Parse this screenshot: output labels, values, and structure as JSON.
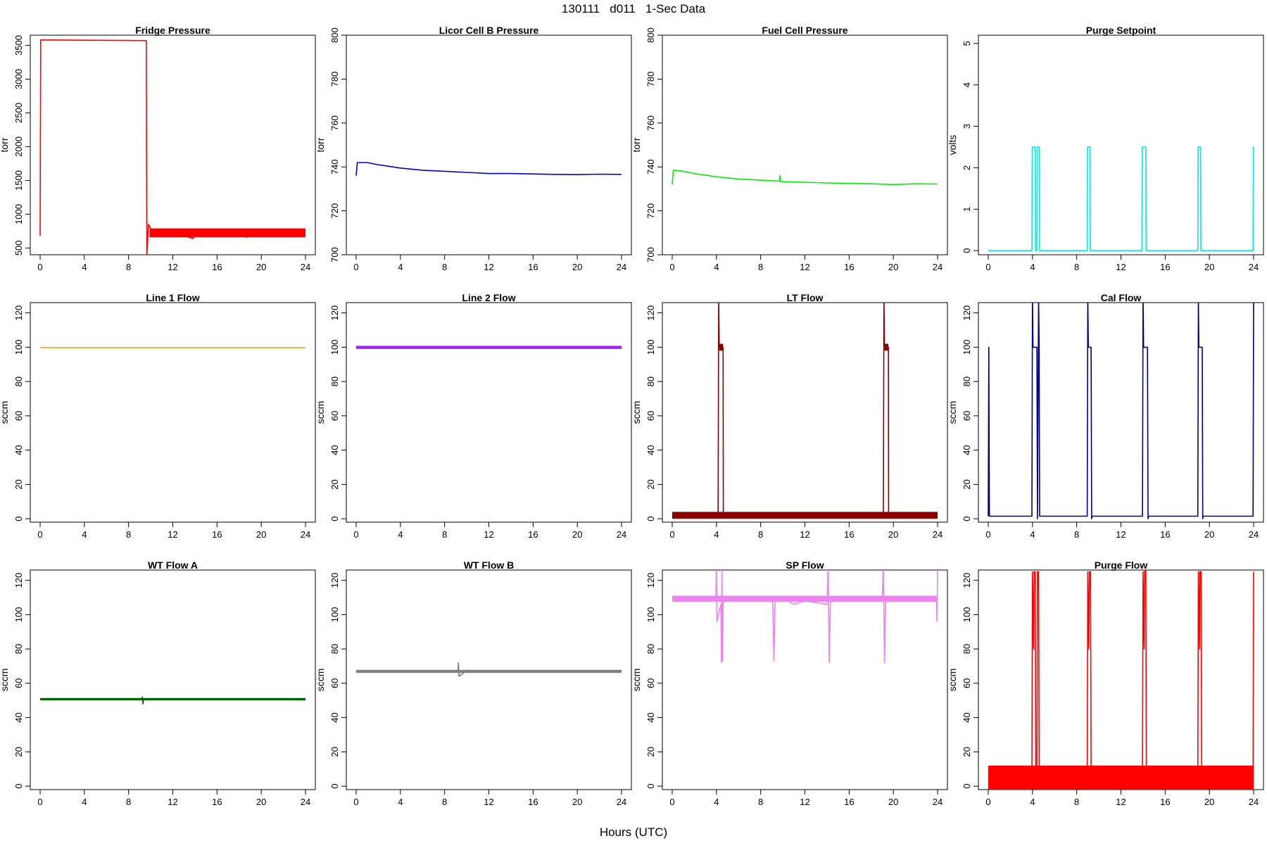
{
  "figure": {
    "title": "130111   d011   1-Sec Data",
    "xlabel": "Hours (UTC)"
  },
  "chart_data": [
    {
      "type": "line",
      "title": "Fridge Pressure",
      "ylabel": "torr",
      "xlim": [
        0,
        24
      ],
      "ylim": [
        400,
        3650
      ],
      "xticks": [
        0,
        4,
        8,
        12,
        16,
        20,
        24
      ],
      "yticks": [
        500,
        1000,
        1500,
        2000,
        2500,
        3000,
        3500
      ],
      "color": "#ff0000",
      "series": [
        {
          "x": [
            0,
            0.05,
            9.6,
            9.65,
            9.8,
            10.2,
            12,
            13.8,
            14.2,
            15,
            18.8,
            19.3,
            22,
            24
          ],
          "y": [
            680,
            3580,
            3570,
            380,
            850,
            730,
            740,
            640,
            720,
            740,
            660,
            730,
            720,
            710
          ]
        }
      ],
      "bands": [
        {
          "x0": 9.9,
          "x1": 24,
          "ymin": 660,
          "ymax": 790
        }
      ]
    },
    {
      "type": "line",
      "title": "Licor Cell B Pressure",
      "ylabel": "torr",
      "xlim": [
        0,
        24
      ],
      "ylim": [
        700,
        800
      ],
      "xticks": [
        0,
        4,
        8,
        12,
        16,
        20,
        24
      ],
      "yticks": [
        700,
        720,
        740,
        760,
        780,
        800
      ],
      "color": "#0000cd",
      "series": [
        {
          "x": [
            0,
            0.1,
            1,
            2,
            4,
            6,
            8,
            10,
            12,
            14,
            16,
            18,
            20,
            22,
            24
          ],
          "y": [
            736,
            742,
            742,
            741,
            739.5,
            738.5,
            738,
            737.5,
            737,
            737,
            736.8,
            736.6,
            736.5,
            736.7,
            736.6
          ]
        }
      ]
    },
    {
      "type": "line",
      "title": "Fuel Cell Pressure",
      "ylabel": "torr",
      "xlim": [
        0,
        24
      ],
      "ylim": [
        700,
        800
      ],
      "xticks": [
        0,
        4,
        8,
        12,
        16,
        20,
        24
      ],
      "yticks": [
        700,
        720,
        740,
        760,
        780,
        800
      ],
      "color": "#00ee00",
      "series": [
        {
          "x": [
            0,
            0.1,
            1,
            2,
            4,
            6,
            8,
            9.7,
            9.75,
            9.8,
            12,
            14,
            16,
            18,
            20,
            22,
            24
          ],
          "y": [
            732,
            738.5,
            738,
            737,
            735.5,
            734.5,
            734,
            733.5,
            736,
            733.3,
            733,
            732.7,
            732.5,
            732.3,
            732,
            732.3,
            732.2
          ]
        }
      ]
    },
    {
      "type": "line",
      "title": "Purge Setpoint",
      "ylabel": "volts",
      "xlim": [
        0,
        24
      ],
      "ylim": [
        -0.1,
        5.2
      ],
      "xticks": [
        0,
        4,
        8,
        12,
        16,
        20,
        24
      ],
      "yticks": [
        0,
        1,
        2,
        3,
        4,
        5
      ],
      "color": "#00e5ee",
      "series": [
        {
          "x": [
            0,
            3.95,
            3.98,
            4.25,
            4.28,
            4.4,
            4.43,
            4.6,
            4.63,
            8.95,
            8.98,
            9.2,
            9.23,
            13.9,
            13.93,
            14.25,
            14.28,
            18.95,
            18.98,
            19.2,
            19.23,
            23.95,
            23.98,
            24
          ],
          "y": [
            0,
            0,
            2.5,
            2.5,
            0,
            0,
            2.5,
            2.5,
            0,
            0,
            2.5,
            2.5,
            0,
            0,
            2.5,
            2.5,
            0,
            0,
            2.5,
            2.5,
            0,
            0,
            2.5,
            2.5
          ]
        }
      ]
    },
    {
      "type": "line",
      "title": "Line 1 Flow",
      "ylabel": "sccm",
      "xlim": [
        0,
        24
      ],
      "ylim": [
        -2,
        126
      ],
      "xticks": [
        0,
        4,
        8,
        12,
        16,
        20,
        24
      ],
      "yticks": [
        0,
        20,
        40,
        60,
        80,
        100,
        120
      ],
      "color": "#ffa500",
      "series": [
        {
          "x": [
            0,
            24
          ],
          "y": [
            99.8,
            99.8
          ]
        }
      ]
    },
    {
      "type": "line",
      "title": "Line 2 Flow",
      "ylabel": "sccm",
      "xlim": [
        0,
        24
      ],
      "ylim": [
        -2,
        126
      ],
      "xticks": [
        0,
        4,
        8,
        12,
        16,
        20,
        24
      ],
      "yticks": [
        0,
        20,
        40,
        60,
        80,
        100,
        120
      ],
      "color": "#a020f0",
      "series": [
        {
          "x": [
            0,
            24
          ],
          "y": [
            99.8,
            99.8
          ]
        }
      ],
      "bands": [
        {
          "x0": 0,
          "x1": 24,
          "ymin": 99,
          "ymax": 100.8
        }
      ]
    },
    {
      "type": "line",
      "title": "LT Flow",
      "ylabel": "sccm",
      "xlim": [
        0,
        24
      ],
      "ylim": [
        -2,
        126
      ],
      "xticks": [
        0,
        4,
        8,
        12,
        16,
        20,
        24
      ],
      "yticks": [
        0,
        20,
        40,
        60,
        80,
        100,
        120
      ],
      "color": "#8b0000",
      "series": [
        {
          "x": [
            0,
            4.15,
            4.2,
            4.25,
            4.3,
            4.6,
            4.62,
            19.1,
            19.15,
            19.2,
            19.25,
            19.55,
            19.57,
            24
          ],
          "y": [
            1.5,
            1.5,
            130,
            100,
            100,
            100,
            1.5,
            1.5,
            130,
            100,
            100,
            100,
            1.5,
            1.5
          ]
        }
      ],
      "bands": [
        {
          "x0": 0,
          "x1": 24,
          "ymin": 0,
          "ymax": 4
        },
        {
          "x0": 4.25,
          "x1": 4.6,
          "ymin": 98,
          "ymax": 102
        },
        {
          "x0": 19.2,
          "x1": 19.55,
          "ymin": 98,
          "ymax": 102
        }
      ]
    },
    {
      "type": "line",
      "title": "Cal Flow",
      "ylabel": "sccm",
      "xlim": [
        0,
        24
      ],
      "ylim": [
        -2,
        126
      ],
      "xticks": [
        0,
        4,
        8,
        12,
        16,
        20,
        24
      ],
      "yticks": [
        0,
        20,
        40,
        60,
        80,
        100,
        120
      ],
      "color": "#00008b",
      "series": [
        {
          "x": [
            0,
            0.05,
            0.1,
            3.95,
            4.0,
            4.05,
            4.4,
            4.45,
            4.55,
            4.6,
            4.65,
            8.95,
            9.0,
            9.05,
            9.3,
            9.35,
            9.4,
            13.95,
            14.0,
            14.05,
            14.4,
            14.45,
            14.5,
            18.95,
            19.0,
            19.05,
            19.35,
            19.4,
            19.45,
            23.95,
            24
          ],
          "y": [
            1.5,
            100,
            1.5,
            1.5,
            130,
            100,
            100,
            0,
            130,
            100,
            1.5,
            1.5,
            130,
            100,
            100,
            0,
            1.5,
            1.5,
            130,
            100,
            100,
            0,
            1.5,
            1.5,
            130,
            100,
            100,
            0,
            1.5,
            1.5,
            130
          ]
        }
      ]
    },
    {
      "type": "line",
      "title": "WT Flow A",
      "ylabel": "sccm",
      "xlim": [
        0,
        24
      ],
      "ylim": [
        -2,
        126
      ],
      "xticks": [
        0,
        4,
        8,
        12,
        16,
        20,
        24
      ],
      "yticks": [
        0,
        20,
        40,
        60,
        80,
        100,
        120
      ],
      "color": "#006400",
      "series": [
        {
          "x": [
            0,
            9.2,
            9.25,
            9.3,
            9.35,
            12,
            16,
            20,
            24
          ],
          "y": [
            50.7,
            50.8,
            52,
            48,
            50.6,
            50.5,
            50.5,
            50.5,
            50.4
          ]
        }
      ],
      "bands": [
        {
          "x0": 0,
          "x1": 24,
          "ymin": 50,
          "ymax": 51.4
        }
      ]
    },
    {
      "type": "line",
      "title": "WT Flow B",
      "ylabel": "sccm",
      "xlim": [
        0,
        24
      ],
      "ylim": [
        -2,
        126
      ],
      "xticks": [
        0,
        4,
        8,
        12,
        16,
        20,
        24
      ],
      "yticks": [
        0,
        20,
        40,
        60,
        80,
        100,
        120
      ],
      "color": "#808080",
      "series": [
        {
          "x": [
            0,
            9.2,
            9.25,
            9.3,
            10,
            12,
            16,
            20,
            24
          ],
          "y": [
            66.8,
            66.8,
            72,
            64,
            67.5,
            66.9,
            66.8,
            66.6,
            66.5
          ]
        }
      ],
      "bands": [
        {
          "x0": 0,
          "x1": 24,
          "ymin": 66,
          "ymax": 67.8
        }
      ]
    },
    {
      "type": "line",
      "title": "SP Flow",
      "ylabel": "sccm",
      "xlim": [
        0,
        24
      ],
      "ylim": [
        -2,
        126
      ],
      "xticks": [
        0,
        4,
        8,
        12,
        16,
        20,
        24
      ],
      "yticks": [
        0,
        20,
        40,
        60,
        80,
        100,
        120
      ],
      "color": "#ee82ee",
      "series": [
        {
          "x": [
            0,
            3.95,
            4.0,
            4.05,
            4.4,
            4.45,
            4.5,
            4.55,
            4.6,
            9.0,
            9.1,
            9.2,
            9.3,
            10.5,
            11,
            12,
            14.0,
            14.1,
            14.2,
            14.3,
            14.4,
            19.0,
            19.1,
            19.2,
            19.3,
            23.9,
            23.95,
            24
          ],
          "y": [
            109,
            109,
            130,
            96,
            106,
            72,
            130,
            73,
            109,
            109,
            105,
            73,
            108,
            108,
            106,
            108,
            106,
            130,
            72,
            106,
            109,
            109,
            130,
            72,
            109,
            109,
            96,
            130
          ]
        }
      ],
      "bands": [
        {
          "x0": 0,
          "x1": 24,
          "ymin": 107.5,
          "ymax": 111
        }
      ]
    },
    {
      "type": "line",
      "title": "Purge Flow",
      "ylabel": "sccm",
      "xlim": [
        0,
        24
      ],
      "ylim": [
        -2,
        126
      ],
      "xticks": [
        0,
        4,
        8,
        12,
        16,
        20,
        24
      ],
      "yticks": [
        0,
        20,
        40,
        60,
        80,
        100,
        120
      ],
      "color": "#ff0000",
      "series": [
        {
          "x": [
            0,
            3.95,
            4.0,
            4.1,
            4.15,
            4.25,
            4.3,
            4.4,
            4.45,
            4.55,
            4.6,
            8.95,
            9.0,
            9.1,
            9.15,
            9.25,
            9.3,
            13.95,
            14.0,
            14.1,
            14.15,
            14.25,
            14.3,
            18.95,
            19.0,
            19.1,
            19.15,
            19.25,
            19.3,
            23.95,
            24.0
          ],
          "y": [
            5,
            5,
            125,
            80,
            125,
            125,
            5,
            5,
            125,
            125,
            5,
            5,
            125,
            80,
            125,
            125,
            5,
            5,
            125,
            80,
            128,
            125,
            5,
            5,
            125,
            80,
            125,
            125,
            5,
            5,
            125
          ]
        }
      ],
      "bands": [
        {
          "x0": 0,
          "x1": 24,
          "ymin": -2,
          "ymax": 12
        }
      ]
    }
  ]
}
